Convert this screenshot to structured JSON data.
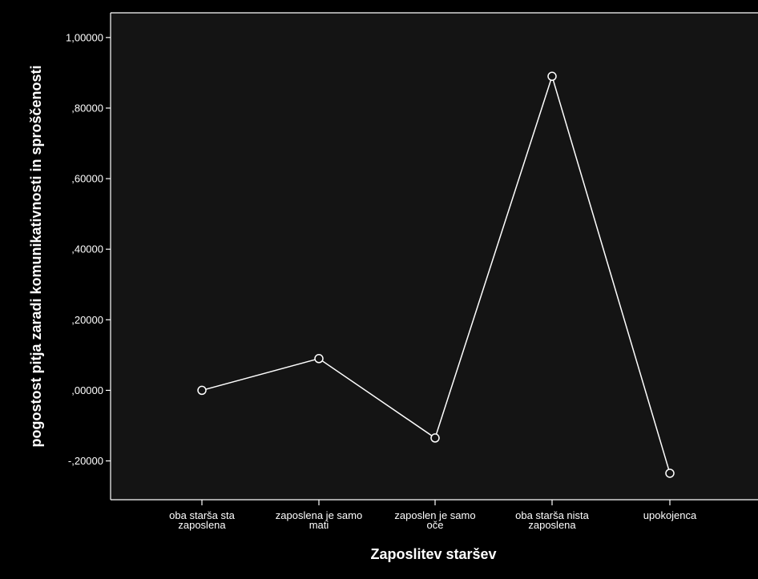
{
  "chart_data": {
    "type": "line",
    "xlabel": "Zaposlitev staršev",
    "ylabel": "pogostost pitja zaradi komunikativnosti in sproščenosti",
    "categories": [
      [
        "oba starša sta",
        "zaposlena"
      ],
      [
        "zaposlena je samo",
        "mati"
      ],
      [
        "zaposlen je samo",
        "oče"
      ],
      [
        "oba starša nista",
        "zaposlena"
      ],
      [
        "upokojenca"
      ]
    ],
    "series": [
      {
        "values": [
          0.0,
          0.09,
          -0.135,
          0.89,
          -0.235
        ]
      }
    ],
    "ylim": [
      -0.31,
      1.07
    ],
    "yticks": [
      1.0,
      0.8,
      0.6,
      0.4,
      0.2,
      0.0,
      -0.2
    ],
    "ytick_labels": [
      "1,00000",
      ",80000",
      ",60000",
      ",40000",
      ",20000",
      ",00000",
      "-,20000"
    ],
    "grid": false,
    "marker": "circle",
    "colors": {
      "background": "#000000",
      "plot_background": "#141414",
      "line": "#ffffff",
      "axis": "#ffffff",
      "text": "#ffffff"
    }
  }
}
